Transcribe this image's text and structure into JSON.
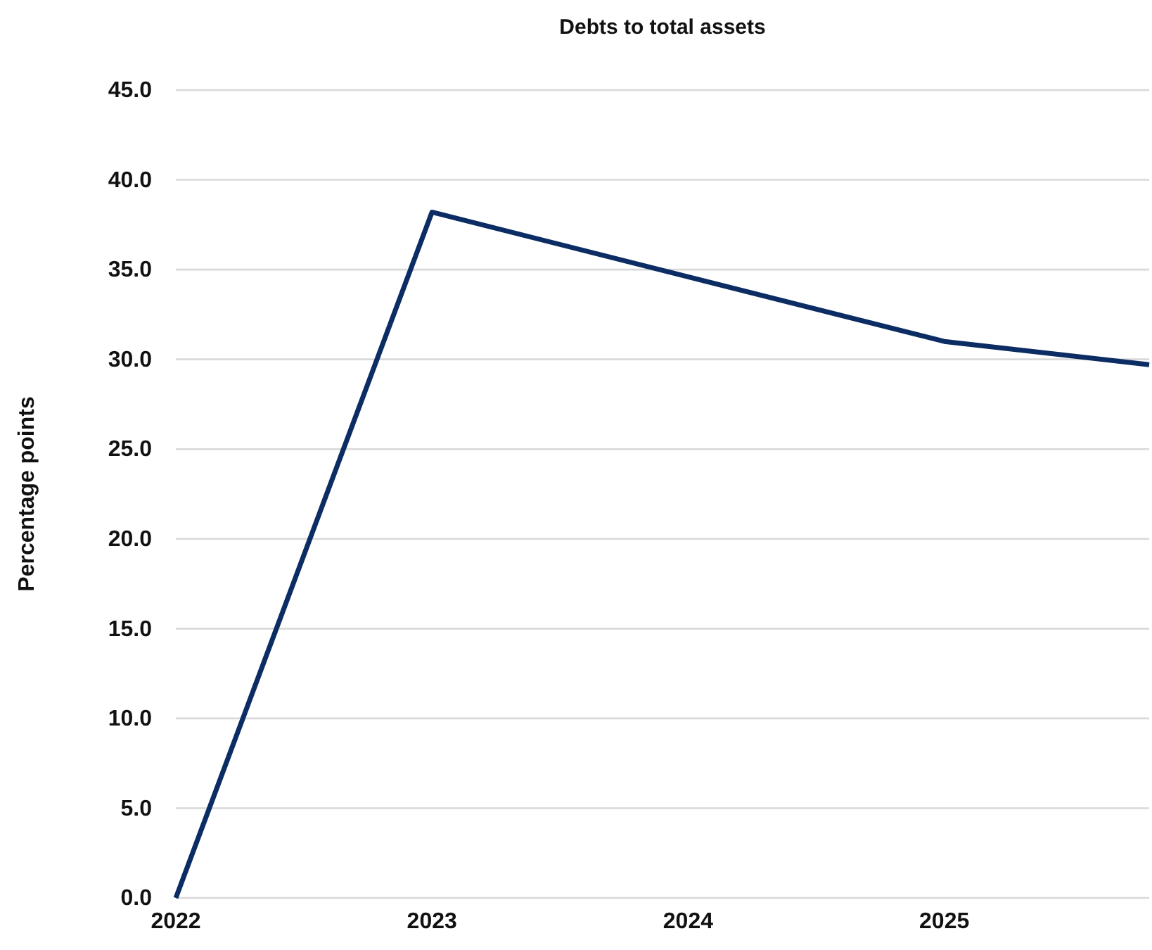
{
  "chart_data": {
    "type": "line",
    "title": "Debts to total assets",
    "ylabel": "Percentage points",
    "x": [
      2022,
      2023,
      2024,
      2025,
      2025.8
    ],
    "series": [
      {
        "color": "#0c2c64",
        "values": [
          0,
          38.2,
          34.6,
          31.0,
          29.7
        ]
      }
    ],
    "xlim": [
      2022,
      2025.8
    ],
    "xticks": [
      2022,
      2023,
      2024,
      2025
    ],
    "ylim": [
      0,
      45
    ],
    "yticks": [
      {
        "value": 0,
        "label": "0.0"
      },
      {
        "value": 5,
        "label": "5.0"
      },
      {
        "value": 10,
        "label": "10.0"
      },
      {
        "value": 15,
        "label": "15.0"
      },
      {
        "value": 20,
        "label": "20.0"
      },
      {
        "value": 25,
        "label": "25.0"
      },
      {
        "value": 30,
        "label": "30.0"
      },
      {
        "value": 35,
        "label": "35.0"
      },
      {
        "value": 40,
        "label": "40.0"
      },
      {
        "value": 45,
        "label": "45.0"
      }
    ],
    "grid": "y",
    "marker": "none",
    "line_style": "solid"
  }
}
